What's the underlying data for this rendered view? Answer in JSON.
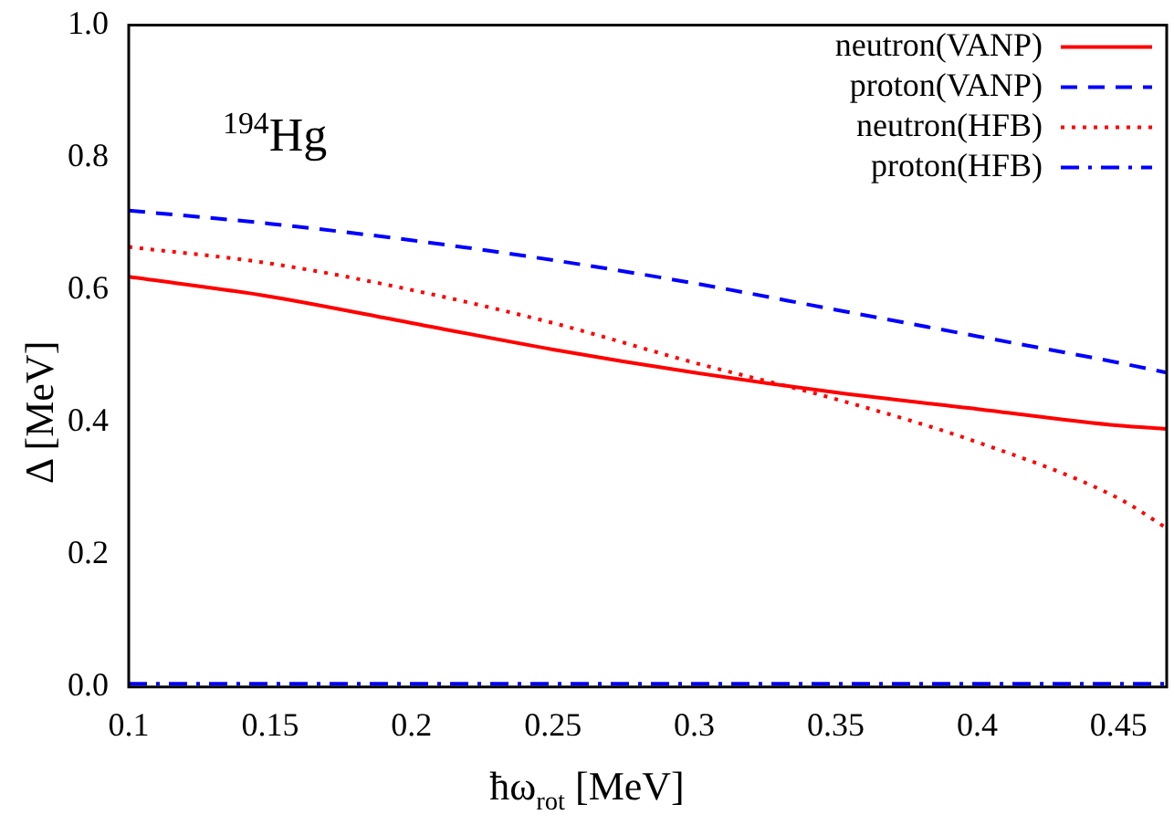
{
  "chart_data": {
    "type": "line",
    "xlabel": "ħω$_{rot}$ [MeV]",
    "ylabel": "Δ [MeV]",
    "annotations": [
      "$^{194}$Hg"
    ],
    "x": [
      0.1,
      0.15,
      0.2,
      0.25,
      0.3,
      0.35,
      0.4,
      0.45,
      0.467
    ],
    "series": [
      {
        "name": "neutron(VANP)",
        "color": "#ff0000",
        "line_style": "solid",
        "values": [
          0.62,
          0.59,
          0.55,
          0.51,
          0.475,
          0.445,
          0.42,
          0.395,
          0.39
        ]
      },
      {
        "name": "proton(VANP)",
        "color": "#0000ff",
        "line_style": "dashed",
        "values": [
          0.72,
          0.7,
          0.675,
          0.645,
          0.61,
          0.57,
          0.53,
          0.49,
          0.475
        ]
      },
      {
        "name": "neutron(HFB)",
        "color": "#ff0000",
        "line_style": "dotted",
        "values": [
          0.665,
          0.64,
          0.6,
          0.55,
          0.49,
          0.435,
          0.37,
          0.285,
          0.24
        ]
      },
      {
        "name": "proton(HFB)",
        "color": "#0000ff",
        "line_style": "dashdot",
        "values": [
          0.005,
          0.005,
          0.005,
          0.005,
          0.005,
          0.005,
          0.005,
          0.005,
          0.005
        ]
      }
    ],
    "xlim": [
      0.1,
      0.467
    ],
    "xticks": [
      0.1,
      0.15,
      0.2,
      0.25,
      0.3,
      0.35,
      0.4,
      0.45
    ],
    "ylim": [
      0,
      1
    ],
    "yticks": [
      {
        "value": 0,
        "label": "0.0"
      },
      {
        "value": 0.2,
        "label": "0.2"
      },
      {
        "value": 0.4,
        "label": "0.4"
      },
      {
        "value": 0.6,
        "label": "0.6"
      },
      {
        "value": 0.8,
        "label": "0.8"
      },
      {
        "value": 1,
        "label": "1.0"
      }
    ],
    "grid": false,
    "legend": "top right",
    "marker": "none"
  }
}
